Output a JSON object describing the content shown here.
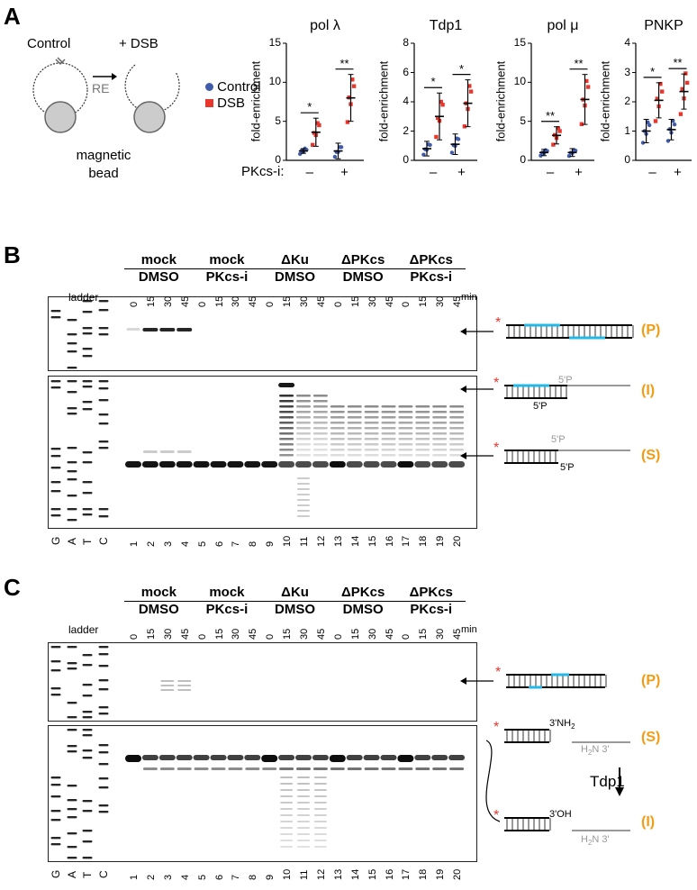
{
  "panels": [
    "A",
    "B",
    "C"
  ],
  "schematic": {
    "control": "Control",
    "dsb": "+ DSB",
    "re": "RE",
    "bead_line1": "magnetic",
    "bead_line2": "bead"
  },
  "legend": {
    "control": "Control",
    "dsb": "DSB"
  },
  "pkcs_label": "PKcs-i:",
  "pkcs_ticks": [
    "–",
    "+"
  ],
  "ylabel": "fold-enrichment",
  "colors": {
    "control": "#3F5BA9",
    "dsb": "#E8362D",
    "accent": "#F39C12",
    "cyan": "#22B8E8"
  },
  "chart_data": [
    {
      "type": "scatter",
      "title": "pol λ",
      "ylabel": "fold-enrichment",
      "ylim": [
        0,
        15
      ],
      "yticks": [
        "0",
        "5",
        "10",
        "15"
      ],
      "categories": [
        "–",
        "+"
      ],
      "sig": [
        "*",
        "**"
      ],
      "series": [
        {
          "name": "Control",
          "means": [
            1.2,
            1.2
          ],
          "sd": [
            0.3,
            1.0
          ]
        },
        {
          "name": "DSB",
          "means": [
            3.6,
            8.0
          ],
          "sd": [
            1.8,
            3.0
          ]
        }
      ]
    },
    {
      "type": "scatter",
      "title": "Tdp1",
      "ylabel": "fold-enrichment",
      "ylim": [
        0,
        8
      ],
      "yticks": [
        "0",
        "2",
        "4",
        "6",
        "8"
      ],
      "categories": [
        "–",
        "+"
      ],
      "sig": [
        "*",
        "*"
      ],
      "series": [
        {
          "name": "Control",
          "means": [
            0.8,
            1.1
          ],
          "sd": [
            0.5,
            0.7
          ]
        },
        {
          "name": "DSB",
          "means": [
            3.0,
            3.9
          ],
          "sd": [
            1.6,
            1.6
          ]
        }
      ]
    },
    {
      "type": "scatter",
      "title": "pol μ",
      "ylabel": "fold-enrichment",
      "ylim": [
        0,
        15
      ],
      "yticks": [
        "0",
        "5",
        "10",
        "15"
      ],
      "categories": [
        "–",
        "+"
      ],
      "sig": [
        "**",
        "**"
      ],
      "series": [
        {
          "name": "Control",
          "means": [
            1.0,
            1.0
          ],
          "sd": [
            0.4,
            0.5
          ]
        },
        {
          "name": "DSB",
          "means": [
            3.2,
            7.8
          ],
          "sd": [
            1.1,
            3.2
          ]
        }
      ]
    },
    {
      "type": "scatter",
      "title": "PNKP",
      "ylabel": "fold-enrichment",
      "ylim": [
        0,
        4
      ],
      "yticks": [
        "0",
        "1",
        "2",
        "3",
        "4"
      ],
      "categories": [
        "–",
        "+"
      ],
      "sig": [
        "*",
        "**"
      ],
      "series": [
        {
          "name": "Control",
          "means": [
            1.0,
            1.05
          ],
          "sd": [
            0.4,
            0.35
          ]
        },
        {
          "name": "DSB",
          "means": [
            2.05,
            2.35
          ],
          "sd": [
            0.6,
            0.6
          ]
        }
      ]
    }
  ],
  "gel_groups": [
    {
      "line1": "mock",
      "line2": "DMSO"
    },
    {
      "line1": "mock",
      "line2": "PKcs-i"
    },
    {
      "line1": "ΔKu",
      "line2": "DMSO"
    },
    {
      "line1": "ΔPKcs",
      "line2": "DMSO"
    },
    {
      "line1": "ΔPKcs",
      "line2": "PKcs-i"
    }
  ],
  "timepoints": [
    "0",
    "15",
    "30",
    "45"
  ],
  "min_label": "min",
  "ladder_label": "ladder",
  "ladder_lanes": [
    "G",
    "A",
    "T",
    "C"
  ],
  "lane_numbers": [
    "1",
    "2",
    "3",
    "4",
    "5",
    "6",
    "7",
    "8",
    "9",
    "10",
    "11",
    "12",
    "13",
    "14",
    "15",
    "16",
    "17",
    "18",
    "19",
    "20"
  ],
  "products": {
    "P": "(P)",
    "I": "(I)",
    "S": "(S)"
  },
  "dna_labels": {
    "five_p": "5'P",
    "three_nh2": "3'",
    "nh2": "NH",
    "h2n": "H",
    "three_oh": "3'OH",
    "tdp1": "Tdp1",
    "three": "3'"
  }
}
